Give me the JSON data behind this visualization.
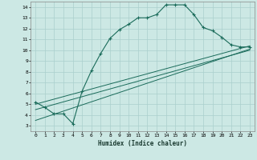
{
  "xlabel": "Humidex (Indice chaleur)",
  "bg_color": "#cce8e4",
  "grid_color": "#aacfcc",
  "line_color": "#1a6b5a",
  "xlim": [
    -0.5,
    23.5
  ],
  "ylim": [
    2.5,
    14.5
  ],
  "xticks": [
    0,
    1,
    2,
    3,
    4,
    5,
    6,
    7,
    8,
    9,
    10,
    11,
    12,
    13,
    14,
    15,
    16,
    17,
    18,
    19,
    20,
    21,
    22,
    23
  ],
  "yticks": [
    3,
    4,
    5,
    6,
    7,
    8,
    9,
    10,
    11,
    12,
    13,
    14
  ],
  "main_x": [
    0,
    1,
    2,
    3,
    4,
    5,
    6,
    7,
    8,
    9,
    10,
    11,
    12,
    13,
    14,
    15,
    16,
    17,
    18,
    19,
    20,
    21,
    22,
    23
  ],
  "main_y": [
    5.2,
    4.7,
    4.1,
    4.1,
    3.2,
    6.2,
    8.1,
    9.7,
    11.1,
    11.9,
    12.4,
    13.0,
    13.0,
    13.3,
    14.2,
    14.2,
    14.2,
    13.3,
    12.1,
    11.8,
    11.2,
    10.5,
    10.3,
    10.3
  ],
  "line1_x": [
    0,
    23
  ],
  "line1_y": [
    5.0,
    10.4
  ],
  "line2_x": [
    0,
    23
  ],
  "line2_y": [
    4.5,
    10.0
  ],
  "line3_x": [
    0,
    23
  ],
  "line3_y": [
    3.5,
    10.1
  ]
}
